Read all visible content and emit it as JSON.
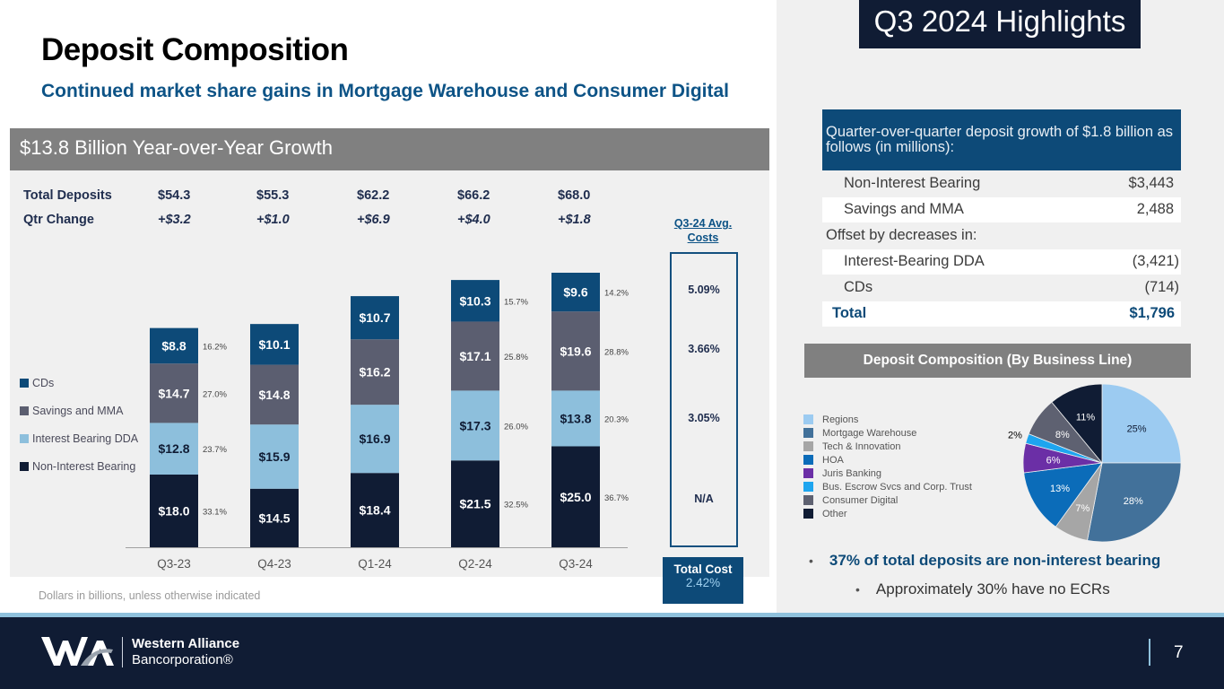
{
  "header": {
    "title": "Deposit Composition",
    "subtitle": "Continued market share gains in Mortgage Warehouse and Consumer Digital",
    "growth_banner": "$13.8 Billion Year-over-Year Growth"
  },
  "summary_rows": {
    "total_label": "Total Deposits",
    "total_values": [
      "$54.3",
      "$55.3",
      "$62.2",
      "$66.2",
      "$68.0"
    ],
    "change_label": "Qtr Change",
    "change_values": [
      "+$3.2",
      "+$1.0",
      "+$6.9",
      "+$4.0",
      "+$1.8"
    ]
  },
  "avg_costs": {
    "header": "Q3-24 Avg. Costs",
    "values": [
      "5.09%",
      "3.66%",
      "3.05%",
      "N/A"
    ],
    "total_label": "Total Cost",
    "total_value": "2.42%"
  },
  "footnote": "Dollars in billions, unless otherwise indicated",
  "highlights": {
    "title": "Q3 2024 Highlights",
    "growth_text": "Quarter-over-quarter deposit growth of $1.8 billion as follows (in millions):",
    "rows": [
      {
        "label": "Non-Interest Bearing",
        "value": "$3,443"
      },
      {
        "label": "Savings and MMA",
        "value": "2,488"
      },
      {
        "label": "Offset by decreases in:",
        "value": ""
      },
      {
        "label": "Interest-Bearing DDA",
        "value": "(3,421)"
      },
      {
        "label": "CDs",
        "value": "(714)"
      },
      {
        "label": "Total",
        "value": "$1,796"
      }
    ],
    "business_line_header": "Deposit Composition (By Business Line)",
    "bullet_main": "37% of total deposits are non-interest bearing",
    "bullet_sub": "Approximately 30% have no ECRs"
  },
  "footer": {
    "company_name": "Western Alliance",
    "company_sub": "Bancorporation®",
    "page_number": "7"
  },
  "chart_data": [
    {
      "type": "bar",
      "stacked": true,
      "title": "",
      "xlabel": "",
      "ylabel": "",
      "categories": [
        "Q3-23",
        "Q4-23",
        "Q1-24",
        "Q2-24",
        "Q3-24"
      ],
      "series": [
        {
          "name": "Non-Interest Bearing",
          "color": "#101c34",
          "values": [
            18.0,
            14.5,
            18.4,
            21.5,
            25.0
          ],
          "labels": [
            "$18.0",
            "$14.5",
            "$18.4",
            "$21.5",
            "$25.0"
          ],
          "pct": [
            "33.1%",
            "",
            "",
            "32.5%",
            "36.7%"
          ]
        },
        {
          "name": "Interest Bearing DDA",
          "color": "#8dbfdc",
          "values": [
            12.8,
            15.9,
            16.9,
            17.3,
            13.8
          ],
          "labels": [
            "$12.8",
            "$15.9",
            "$16.9",
            "$17.3",
            "$13.8"
          ],
          "pct": [
            "23.7%",
            "",
            "",
            "26.0%",
            "20.3%"
          ]
        },
        {
          "name": "Savings and MMA",
          "color": "#5b5e70",
          "values": [
            14.7,
            14.8,
            16.2,
            17.1,
            19.6
          ],
          "labels": [
            "$14.7",
            "$14.8",
            "$16.2",
            "$17.1",
            "$19.6"
          ],
          "pct": [
            "27.0%",
            "",
            "",
            "25.8%",
            "28.8%"
          ]
        },
        {
          "name": "CDs",
          "color": "#0d4a78",
          "values": [
            8.8,
            10.1,
            10.7,
            10.3,
            9.6
          ],
          "labels": [
            "$8.8",
            "$10.1",
            "$10.7",
            "$10.3",
            "$9.6"
          ],
          "pct": [
            "16.2%",
            "",
            "",
            "15.7%",
            "14.2%"
          ]
        }
      ],
      "legend": [
        "CDs",
        "Savings and MMA",
        "Interest Bearing DDA",
        "Non-Interest Bearing"
      ],
      "legend_position": "left",
      "grid": false
    },
    {
      "type": "pie",
      "title": "Deposit Composition (By Business Line)",
      "slices": [
        {
          "name": "Regions",
          "value": 25,
          "label": "25%",
          "color": "#9ccbf1"
        },
        {
          "name": "Mortgage Warehouse",
          "value": 28,
          "label": "28%",
          "color": "#42719a"
        },
        {
          "name": "Tech & Innovation",
          "value": 7,
          "label": "7%",
          "color": "#a6a6a6"
        },
        {
          "name": "HOA",
          "value": 13,
          "label": "13%",
          "color": "#0b6cb9"
        },
        {
          "name": "Juris Banking",
          "value": 6,
          "label": "6%",
          "color": "#6b2fa6"
        },
        {
          "name": "Bus. Escrow Svcs and Corp. Trust",
          "value": 2,
          "label": "2%",
          "color": "#1ea5ef"
        },
        {
          "name": "Consumer Digital",
          "value": 8,
          "label": "8%",
          "color": "#5e6171"
        },
        {
          "name": "Other",
          "value": 11,
          "label": "11%",
          "color": "#101c34"
        }
      ],
      "legend_position": "left"
    }
  ]
}
